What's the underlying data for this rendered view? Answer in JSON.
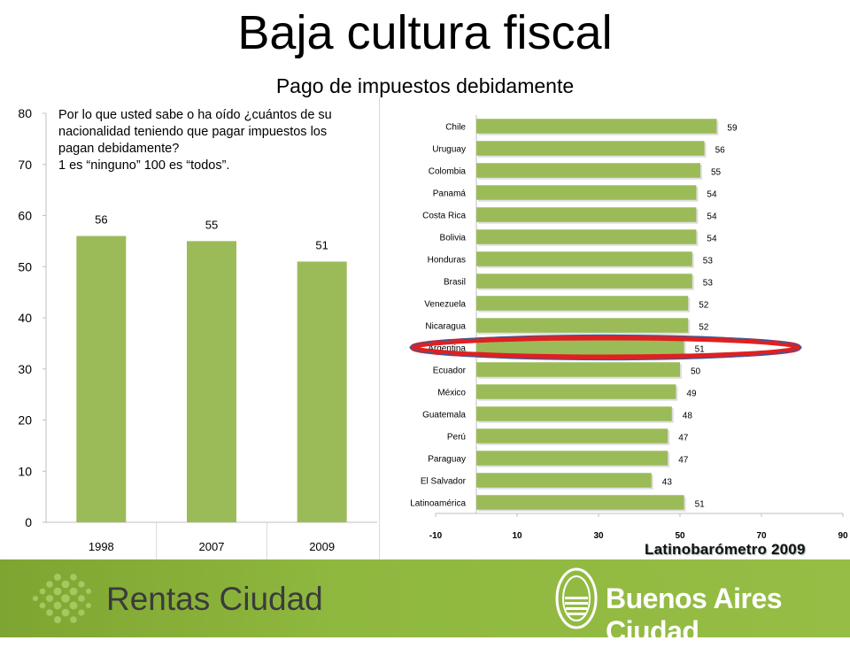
{
  "header": {
    "title": "Baja cultura fiscal",
    "subtitle": "Pago de impuestos debidamente"
  },
  "question": {
    "lines": [
      "Por lo que usted sabe o ha oído ¿cuántos de su",
      "nacionalidad teniendo que pagar impuestos los",
      "pagan debidamente?",
      "1 es “ninguno” 100 es “todos”."
    ]
  },
  "source": "Latinobarómetro 2009",
  "footer": {
    "brand_left": "Rentas Ciudad",
    "brand_right": "Buenos Aires Ciudad"
  },
  "colors": {
    "bar": "#9bbb59",
    "highlight": "#e02020",
    "footer": "#8db53c"
  },
  "chart_data": [
    {
      "type": "bar",
      "categories": [
        "1998",
        "2007",
        "2009"
      ],
      "values": [
        56,
        55,
        51
      ],
      "ylim": [
        0,
        80
      ],
      "yticks": [
        0,
        10,
        20,
        30,
        40,
        50,
        60,
        70,
        80
      ],
      "title": "",
      "xlabel": "",
      "ylabel": "",
      "grid": false,
      "data_labels": true
    },
    {
      "type": "bar",
      "orientation": "horizontal",
      "categories": [
        "Chile",
        "Uruguay",
        "Colombia",
        "Panamá",
        "Costa Rica",
        "Bolivia",
        "Honduras",
        "Brasil",
        "Venezuela",
        "Nicaragua",
        "Argentina",
        "Ecuador",
        "México",
        "Guatemala",
        "Perú",
        "Paraguay",
        "El Salvador",
        "Latinoamérica"
      ],
      "values": [
        59,
        56,
        55,
        54,
        54,
        54,
        53,
        53,
        52,
        52,
        51,
        50,
        49,
        48,
        47,
        47,
        43,
        51
      ],
      "xlim": [
        -10,
        90
      ],
      "xticks": [
        -10,
        10,
        30,
        50,
        70,
        90
      ],
      "highlight": "Argentina",
      "title": "",
      "xlabel": "",
      "ylabel": "",
      "grid": false,
      "data_labels": true
    }
  ]
}
